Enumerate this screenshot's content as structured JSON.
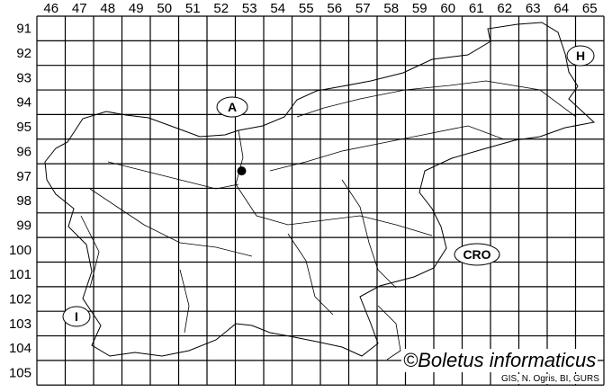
{
  "map": {
    "columns": [
      "46",
      "47",
      "48",
      "49",
      "50",
      "51",
      "52",
      "53",
      "54",
      "55",
      "56",
      "57",
      "58",
      "59",
      "60",
      "61",
      "62",
      "63",
      "64",
      "65"
    ],
    "rows": [
      "91",
      "92",
      "93",
      "94",
      "95",
      "96",
      "97",
      "98",
      "99",
      "100",
      "101",
      "102",
      "103",
      "104",
      "105"
    ],
    "country_labels": [
      {
        "id": "austria",
        "text": "A"
      },
      {
        "id": "hungary",
        "text": "H"
      },
      {
        "id": "croatia",
        "text": "CRO"
      },
      {
        "id": "italy",
        "text": "I"
      }
    ],
    "records": [
      {
        "column": "53",
        "row": "97"
      }
    ],
    "copyright": "©Boletus informaticus",
    "credits": "GIS, N. Ogris, BI, GURS",
    "colors": {
      "line": "#000000",
      "background": "#ffffff",
      "record_dot": "#000000"
    }
  }
}
